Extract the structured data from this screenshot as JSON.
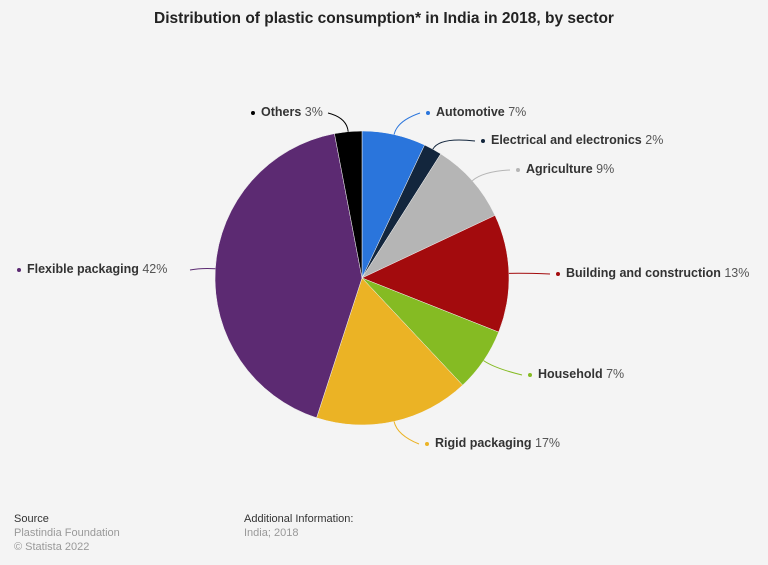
{
  "chart_data": {
    "type": "pie",
    "title": "Distribution of plastic consumption* in India in 2018, by sector",
    "start": "top",
    "direction": "clockwise",
    "slices": [
      {
        "label": "Automotive",
        "value": 7,
        "value_label": "7%",
        "color": "#2a75dc"
      },
      {
        "label": "Electrical and electronics",
        "value": 2,
        "value_label": "2%",
        "color": "#13263d"
      },
      {
        "label": "Agriculture",
        "value": 9,
        "value_label": "9%",
        "color": "#b5b5b5"
      },
      {
        "label": "Building and construction",
        "value": 13,
        "value_label": "13%",
        "color": "#a30b0d"
      },
      {
        "label": "Household",
        "value": 7,
        "value_label": "7%",
        "color": "#85bb23"
      },
      {
        "label": "Rigid packaging",
        "value": 17,
        "value_label": "17%",
        "color": "#ebb325"
      },
      {
        "label": "Flexible packaging",
        "value": 42,
        "value_label": "42%",
        "color": "#5c2a72"
      },
      {
        "label": "Others",
        "value": 3,
        "value_label": "3%",
        "color": "#000000"
      }
    ]
  },
  "footer": {
    "source_heading": "Source",
    "source": "Plastindia Foundation",
    "copyright": "© Statista 2022",
    "info_heading": "Additional Information:",
    "info": "India; 2018"
  }
}
